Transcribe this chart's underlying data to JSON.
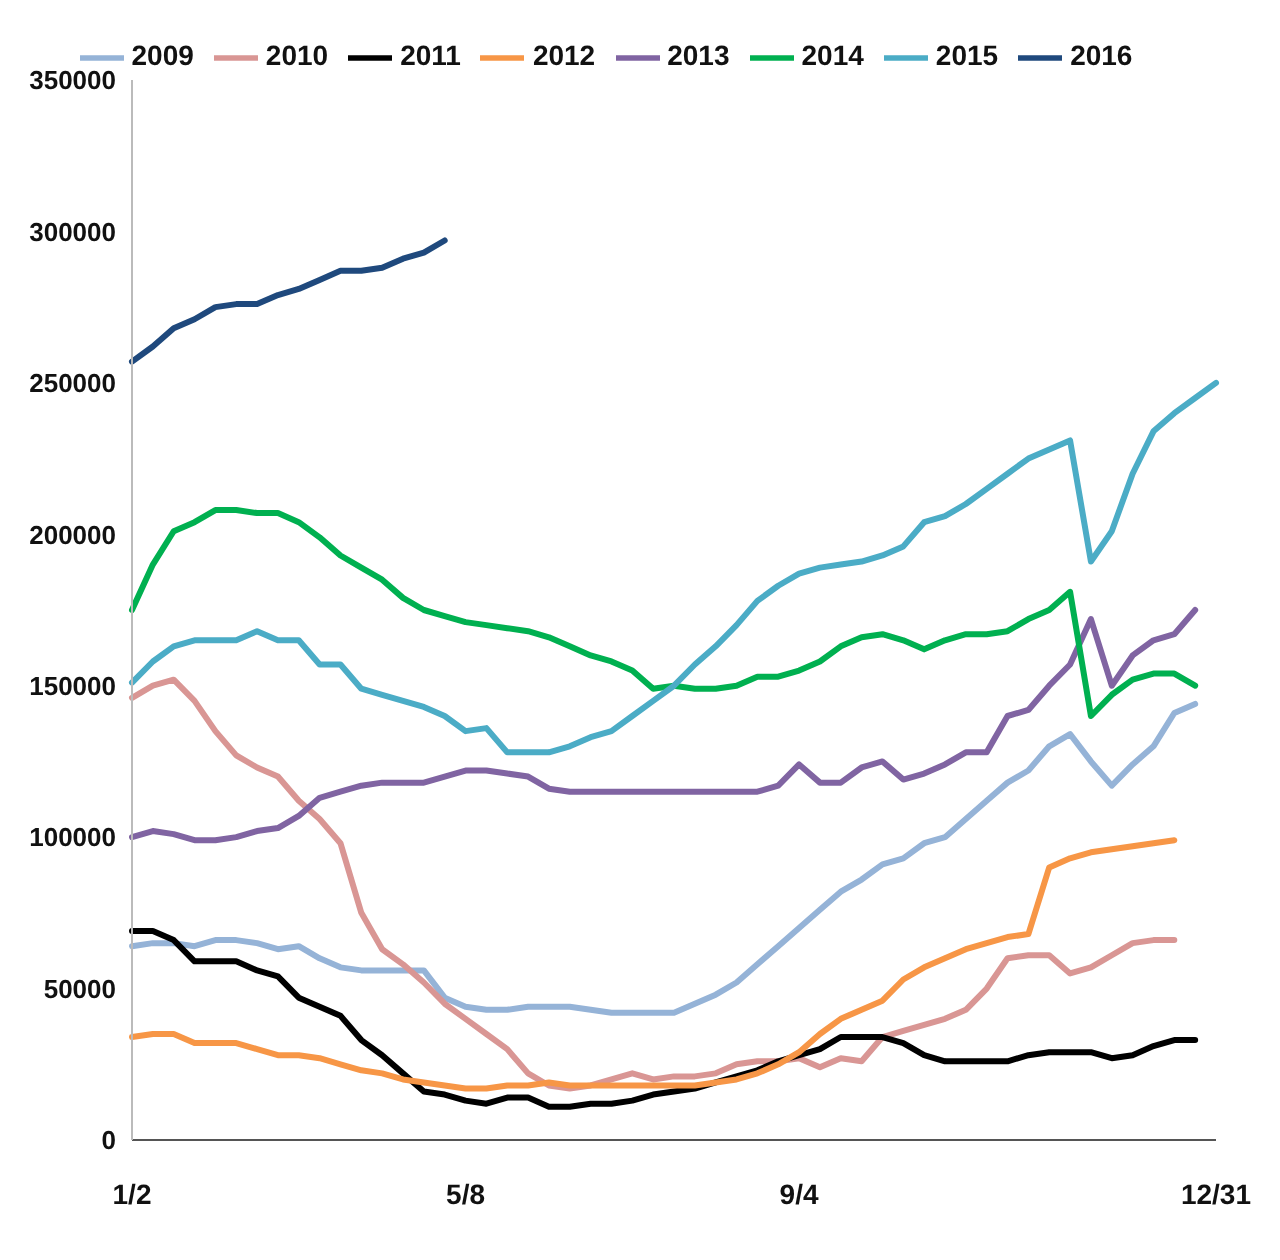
{
  "chart_data": {
    "type": "line",
    "categories": [
      "1/2",
      null,
      null,
      null,
      null,
      null,
      null,
      null,
      null,
      null,
      null,
      null,
      null,
      null,
      null,
      null,
      "5/8",
      null,
      null,
      null,
      null,
      null,
      null,
      null,
      null,
      null,
      null,
      null,
      null,
      null,
      null,
      null,
      "9/4",
      null,
      null,
      null,
      null,
      null,
      null,
      null,
      null,
      null,
      null,
      null,
      null,
      null,
      null,
      null,
      null,
      null,
      null,
      null,
      "12/31"
    ],
    "series": [
      {
        "name": "2009",
        "color": "#95b3d7",
        "values": [
          64000,
          65000,
          65000,
          64000,
          66000,
          66000,
          65000,
          63000,
          64000,
          60000,
          57000,
          56000,
          56000,
          56000,
          56000,
          47000,
          44000,
          43000,
          43000,
          44000,
          44000,
          44000,
          43000,
          42000,
          42000,
          42000,
          42000,
          45000,
          48000,
          52000,
          58000,
          64000,
          70000,
          76000,
          82000,
          86000,
          91000,
          93000,
          98000,
          100000,
          106000,
          112000,
          118000,
          122000,
          130000,
          134000,
          125000,
          117000,
          124000,
          130000,
          141000,
          144000,
          null
        ]
      },
      {
        "name": "2010",
        "color": "#d99694",
        "values": [
          146000,
          150000,
          152000,
          145000,
          135000,
          127000,
          123000,
          120000,
          112000,
          106000,
          98000,
          75000,
          63000,
          58000,
          52000,
          45000,
          40000,
          35000,
          30000,
          22000,
          18000,
          17000,
          18000,
          20000,
          22000,
          20000,
          21000,
          21000,
          22000,
          25000,
          26000,
          26000,
          27000,
          24000,
          27000,
          26000,
          34000,
          36000,
          38000,
          40000,
          43000,
          50000,
          60000,
          61000,
          61000,
          55000,
          57000,
          61000,
          65000,
          66000,
          66000,
          null,
          null
        ]
      },
      {
        "name": "2011",
        "color": "#000000",
        "values": [
          69000,
          69000,
          66000,
          59000,
          59000,
          59000,
          56000,
          54000,
          47000,
          44000,
          41000,
          33000,
          28000,
          22000,
          16000,
          15000,
          13000,
          12000,
          14000,
          14000,
          11000,
          11000,
          12000,
          12000,
          13000,
          15000,
          16000,
          17000,
          19000,
          21000,
          23000,
          26000,
          28000,
          30000,
          34000,
          34000,
          34000,
          32000,
          28000,
          26000,
          26000,
          26000,
          26000,
          28000,
          29000,
          29000,
          29000,
          27000,
          28000,
          31000,
          33000,
          33000,
          null
        ]
      },
      {
        "name": "2012",
        "color": "#f79646",
        "values": [
          34000,
          35000,
          35000,
          32000,
          32000,
          32000,
          30000,
          28000,
          28000,
          27000,
          25000,
          23000,
          22000,
          20000,
          19000,
          18000,
          17000,
          17000,
          18000,
          18000,
          19000,
          18000,
          18000,
          18000,
          18000,
          18000,
          18000,
          18000,
          19000,
          20000,
          22000,
          25000,
          29000,
          35000,
          40000,
          43000,
          46000,
          53000,
          57000,
          60000,
          63000,
          65000,
          67000,
          68000,
          90000,
          93000,
          95000,
          96000,
          97000,
          98000,
          99000,
          null,
          null
        ]
      },
      {
        "name": "2013",
        "color": "#8064a2",
        "values": [
          100000,
          102000,
          101000,
          99000,
          99000,
          100000,
          102000,
          103000,
          107000,
          113000,
          115000,
          117000,
          118000,
          118000,
          118000,
          120000,
          122000,
          122000,
          121000,
          120000,
          116000,
          115000,
          115000,
          115000,
          115000,
          115000,
          115000,
          115000,
          115000,
          115000,
          115000,
          117000,
          124000,
          118000,
          118000,
          123000,
          125000,
          119000,
          121000,
          124000,
          128000,
          128000,
          140000,
          142000,
          150000,
          157000,
          172000,
          150000,
          160000,
          165000,
          167000,
          175000,
          null
        ]
      },
      {
        "name": "2014",
        "color": "#00b050",
        "values": [
          175000,
          190000,
          201000,
          204000,
          208000,
          208000,
          207000,
          207000,
          204000,
          199000,
          193000,
          189000,
          185000,
          179000,
          175000,
          173000,
          171000,
          170000,
          169000,
          168000,
          166000,
          163000,
          160000,
          158000,
          155000,
          149000,
          150000,
          149000,
          149000,
          150000,
          153000,
          153000,
          155000,
          158000,
          163000,
          166000,
          167000,
          165000,
          162000,
          165000,
          167000,
          167000,
          168000,
          172000,
          175000,
          181000,
          140000,
          147000,
          152000,
          154000,
          154000,
          150000,
          null
        ]
      },
      {
        "name": "2015",
        "color": "#4bacc6",
        "values": [
          151000,
          158000,
          163000,
          165000,
          165000,
          165000,
          168000,
          165000,
          165000,
          157000,
          157000,
          149000,
          147000,
          145000,
          143000,
          140000,
          135000,
          136000,
          128000,
          128000,
          128000,
          130000,
          133000,
          135000,
          140000,
          145000,
          150000,
          157000,
          163000,
          170000,
          178000,
          183000,
          187000,
          189000,
          190000,
          191000,
          193000,
          196000,
          204000,
          206000,
          210000,
          215000,
          220000,
          225000,
          228000,
          231000,
          191000,
          201000,
          220000,
          234000,
          240000,
          245000,
          250000
        ]
      },
      {
        "name": "2016",
        "color": "#1f497d",
        "values": [
          257000,
          262000,
          268000,
          271000,
          275000,
          276000,
          276000,
          279000,
          281000,
          284000,
          287000,
          287000,
          288000,
          291000,
          293000,
          297000,
          null,
          null,
          null,
          null,
          null,
          null,
          null,
          null,
          null,
          null,
          null,
          null,
          null,
          null,
          null,
          null,
          null,
          null,
          null,
          null,
          null,
          null,
          null,
          null,
          null,
          null,
          null,
          null,
          null,
          null,
          null,
          null,
          null,
          null,
          null,
          null,
          null
        ]
      }
    ],
    "ylim": [
      0,
      350000
    ],
    "yticks": [
      0,
      50000,
      100000,
      150000,
      200000,
      250000,
      300000,
      350000
    ],
    "grid": false,
    "legend": "top",
    "marker": "none",
    "line_style": "solid"
  }
}
